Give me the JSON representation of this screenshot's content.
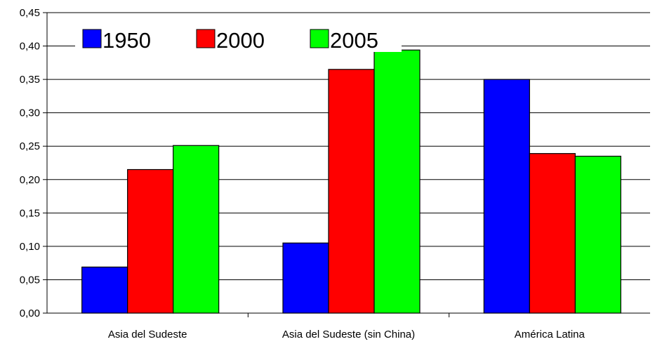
{
  "chart_data": {
    "type": "bar",
    "categories": [
      "Asia del Sudeste",
      "Asia del Sudeste (sin China)",
      "América Latina"
    ],
    "series": [
      {
        "name": "1950",
        "color": "#0000ff",
        "values": [
          0.069,
          0.105,
          0.35
        ]
      },
      {
        "name": "2000",
        "color": "#ff0000",
        "values": [
          0.215,
          0.365,
          0.239
        ]
      },
      {
        "name": "2005",
        "color": "#00ff00",
        "values": [
          0.251,
          0.394,
          0.235
        ]
      }
    ],
    "ylim": [
      0,
      0.45
    ],
    "yticks": [
      "0,00",
      "0,05",
      "0,10",
      "0,15",
      "0,20",
      "0,25",
      "0,30",
      "0,35",
      "0,40",
      "0,45"
    ],
    "grid": true,
    "legend_position": "top-left"
  }
}
